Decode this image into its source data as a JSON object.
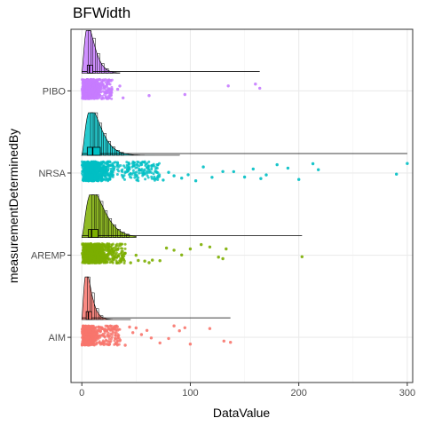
{
  "chart_data": {
    "type": "raincloud",
    "title": "BFWidth",
    "xlabel": "DataValue",
    "ylabel": "measurementDeterminedBy",
    "xlim": [
      -10,
      305
    ],
    "x_ticks": [
      0,
      100,
      200,
      300
    ],
    "grid": true,
    "legend": "none",
    "categories": [
      "AIM",
      "AREMP",
      "NRSA",
      "PIBO"
    ],
    "series": [
      {
        "name": "AIM",
        "color": "#F8766D",
        "median": 6,
        "q1": 4,
        "q3": 9,
        "whisker_low": 0,
        "whisker_high": 137,
        "density_peak": 3,
        "density_tail": 45,
        "outliers": [
          40,
          44,
          47,
          50,
          55,
          60,
          64,
          72,
          80,
          85,
          90,
          95,
          100,
          118,
          131,
          137
        ]
      },
      {
        "name": "AREMP",
        "color": "#7CAE00",
        "median": 9,
        "q1": 6,
        "q3": 15,
        "whisker_low": 0,
        "whisker_high": 203,
        "density_peak": 7,
        "density_tail": 50,
        "outliers": [
          40,
          45,
          50,
          52,
          58,
          62,
          65,
          72,
          78,
          85,
          92,
          100,
          110,
          118,
          126,
          130,
          133,
          203
        ]
      },
      {
        "name": "NRSA",
        "color": "#00BFC4",
        "median": 10,
        "q1": 5,
        "q3": 17,
        "whisker_low": 0,
        "whisker_high": 300,
        "density_peak": 6,
        "density_tail": 90,
        "outliers": [
          42,
          48,
          55,
          60,
          65,
          70,
          75,
          80,
          85,
          92,
          98,
          105,
          112,
          120,
          130,
          140,
          150,
          158,
          165,
          170,
          180,
          190,
          200,
          213,
          218,
          290,
          300
        ]
      },
      {
        "name": "PIBO",
        "color": "#C77CFF",
        "median": 7,
        "q1": 5,
        "q3": 10,
        "whisker_low": 0,
        "whisker_high": 164,
        "density_peak": 4,
        "density_tail": 35,
        "outliers": [
          33,
          35,
          38,
          62,
          95,
          135,
          160,
          164
        ]
      }
    ]
  }
}
